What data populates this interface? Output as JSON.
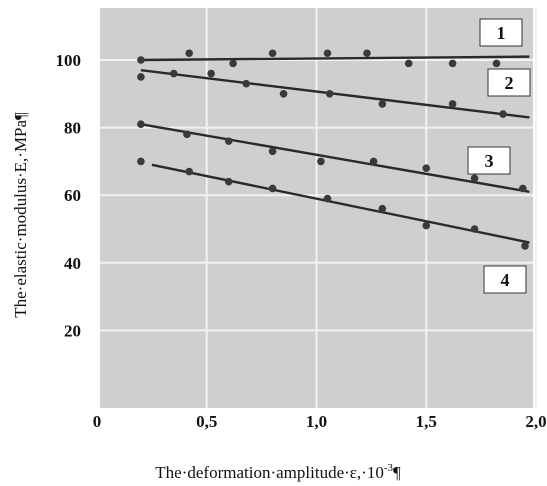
{
  "chart_data": {
    "type": "scatter",
    "title": "",
    "xlabel_main": "The·deformation·amplitude·ε,·10",
    "xlabel_sup": "-3",
    "xlabel_end": "¶",
    "ylabel": "The·elastic·modulus·E,·MPa¶",
    "xlim": [
      0,
      2.05
    ],
    "ylim": [
      0,
      118
    ],
    "x_ticks": [
      {
        "value": 0,
        "label": "0"
      },
      {
        "value": 0.5,
        "label": "0,5"
      },
      {
        "value": 1.0,
        "label": "1,0"
      },
      {
        "value": 1.5,
        "label": "1,5"
      },
      {
        "value": 2.0,
        "label": "2,0"
      }
    ],
    "y_ticks": [
      {
        "value": 20,
        "label": "20"
      },
      {
        "value": 40,
        "label": "40"
      },
      {
        "value": 60,
        "label": "60"
      },
      {
        "value": 80,
        "label": "80"
      },
      {
        "value": 100,
        "label": "100"
      }
    ],
    "grid": true,
    "colors": {
      "background": "#cfcfcf",
      "grid": "#f2f2f2",
      "line": "#2a2a2a",
      "marker": "#3a3a3a"
    },
    "series": [
      {
        "label": "1",
        "fit": [
          [
            0.2,
            100
          ],
          [
            1.97,
            101
          ]
        ],
        "points": [
          [
            0.2,
            100
          ],
          [
            0.42,
            102
          ],
          [
            0.62,
            99
          ],
          [
            0.8,
            102
          ],
          [
            1.05,
            102
          ],
          [
            1.23,
            102
          ],
          [
            1.42,
            99
          ],
          [
            1.62,
            99
          ],
          [
            1.82,
            99
          ]
        ]
      },
      {
        "label": "2",
        "fit": [
          [
            0.2,
            97
          ],
          [
            1.97,
            83
          ]
        ],
        "points": [
          [
            0.2,
            95
          ],
          [
            0.35,
            96
          ],
          [
            0.52,
            96
          ],
          [
            0.68,
            93
          ],
          [
            0.85,
            90
          ],
          [
            1.06,
            90
          ],
          [
            1.3,
            87
          ],
          [
            1.62,
            87
          ],
          [
            1.85,
            84
          ]
        ]
      },
      {
        "label": "3",
        "fit": [
          [
            0.2,
            81
          ],
          [
            1.97,
            61
          ]
        ],
        "points": [
          [
            0.2,
            81
          ],
          [
            0.41,
            78
          ],
          [
            0.6,
            76
          ],
          [
            0.8,
            73
          ],
          [
            1.02,
            70
          ],
          [
            1.26,
            70
          ],
          [
            1.5,
            68
          ],
          [
            1.72,
            65
          ],
          [
            1.94,
            62
          ]
        ]
      },
      {
        "label": "4",
        "fit": [
          [
            0.25,
            69
          ],
          [
            1.97,
            46
          ]
        ],
        "points": [
          [
            0.2,
            70
          ],
          [
            0.42,
            67
          ],
          [
            0.6,
            64
          ],
          [
            0.8,
            62
          ],
          [
            1.05,
            59
          ],
          [
            1.3,
            56
          ],
          [
            1.5,
            51
          ],
          [
            1.72,
            50
          ],
          [
            1.95,
            45
          ]
        ]
      }
    ]
  }
}
